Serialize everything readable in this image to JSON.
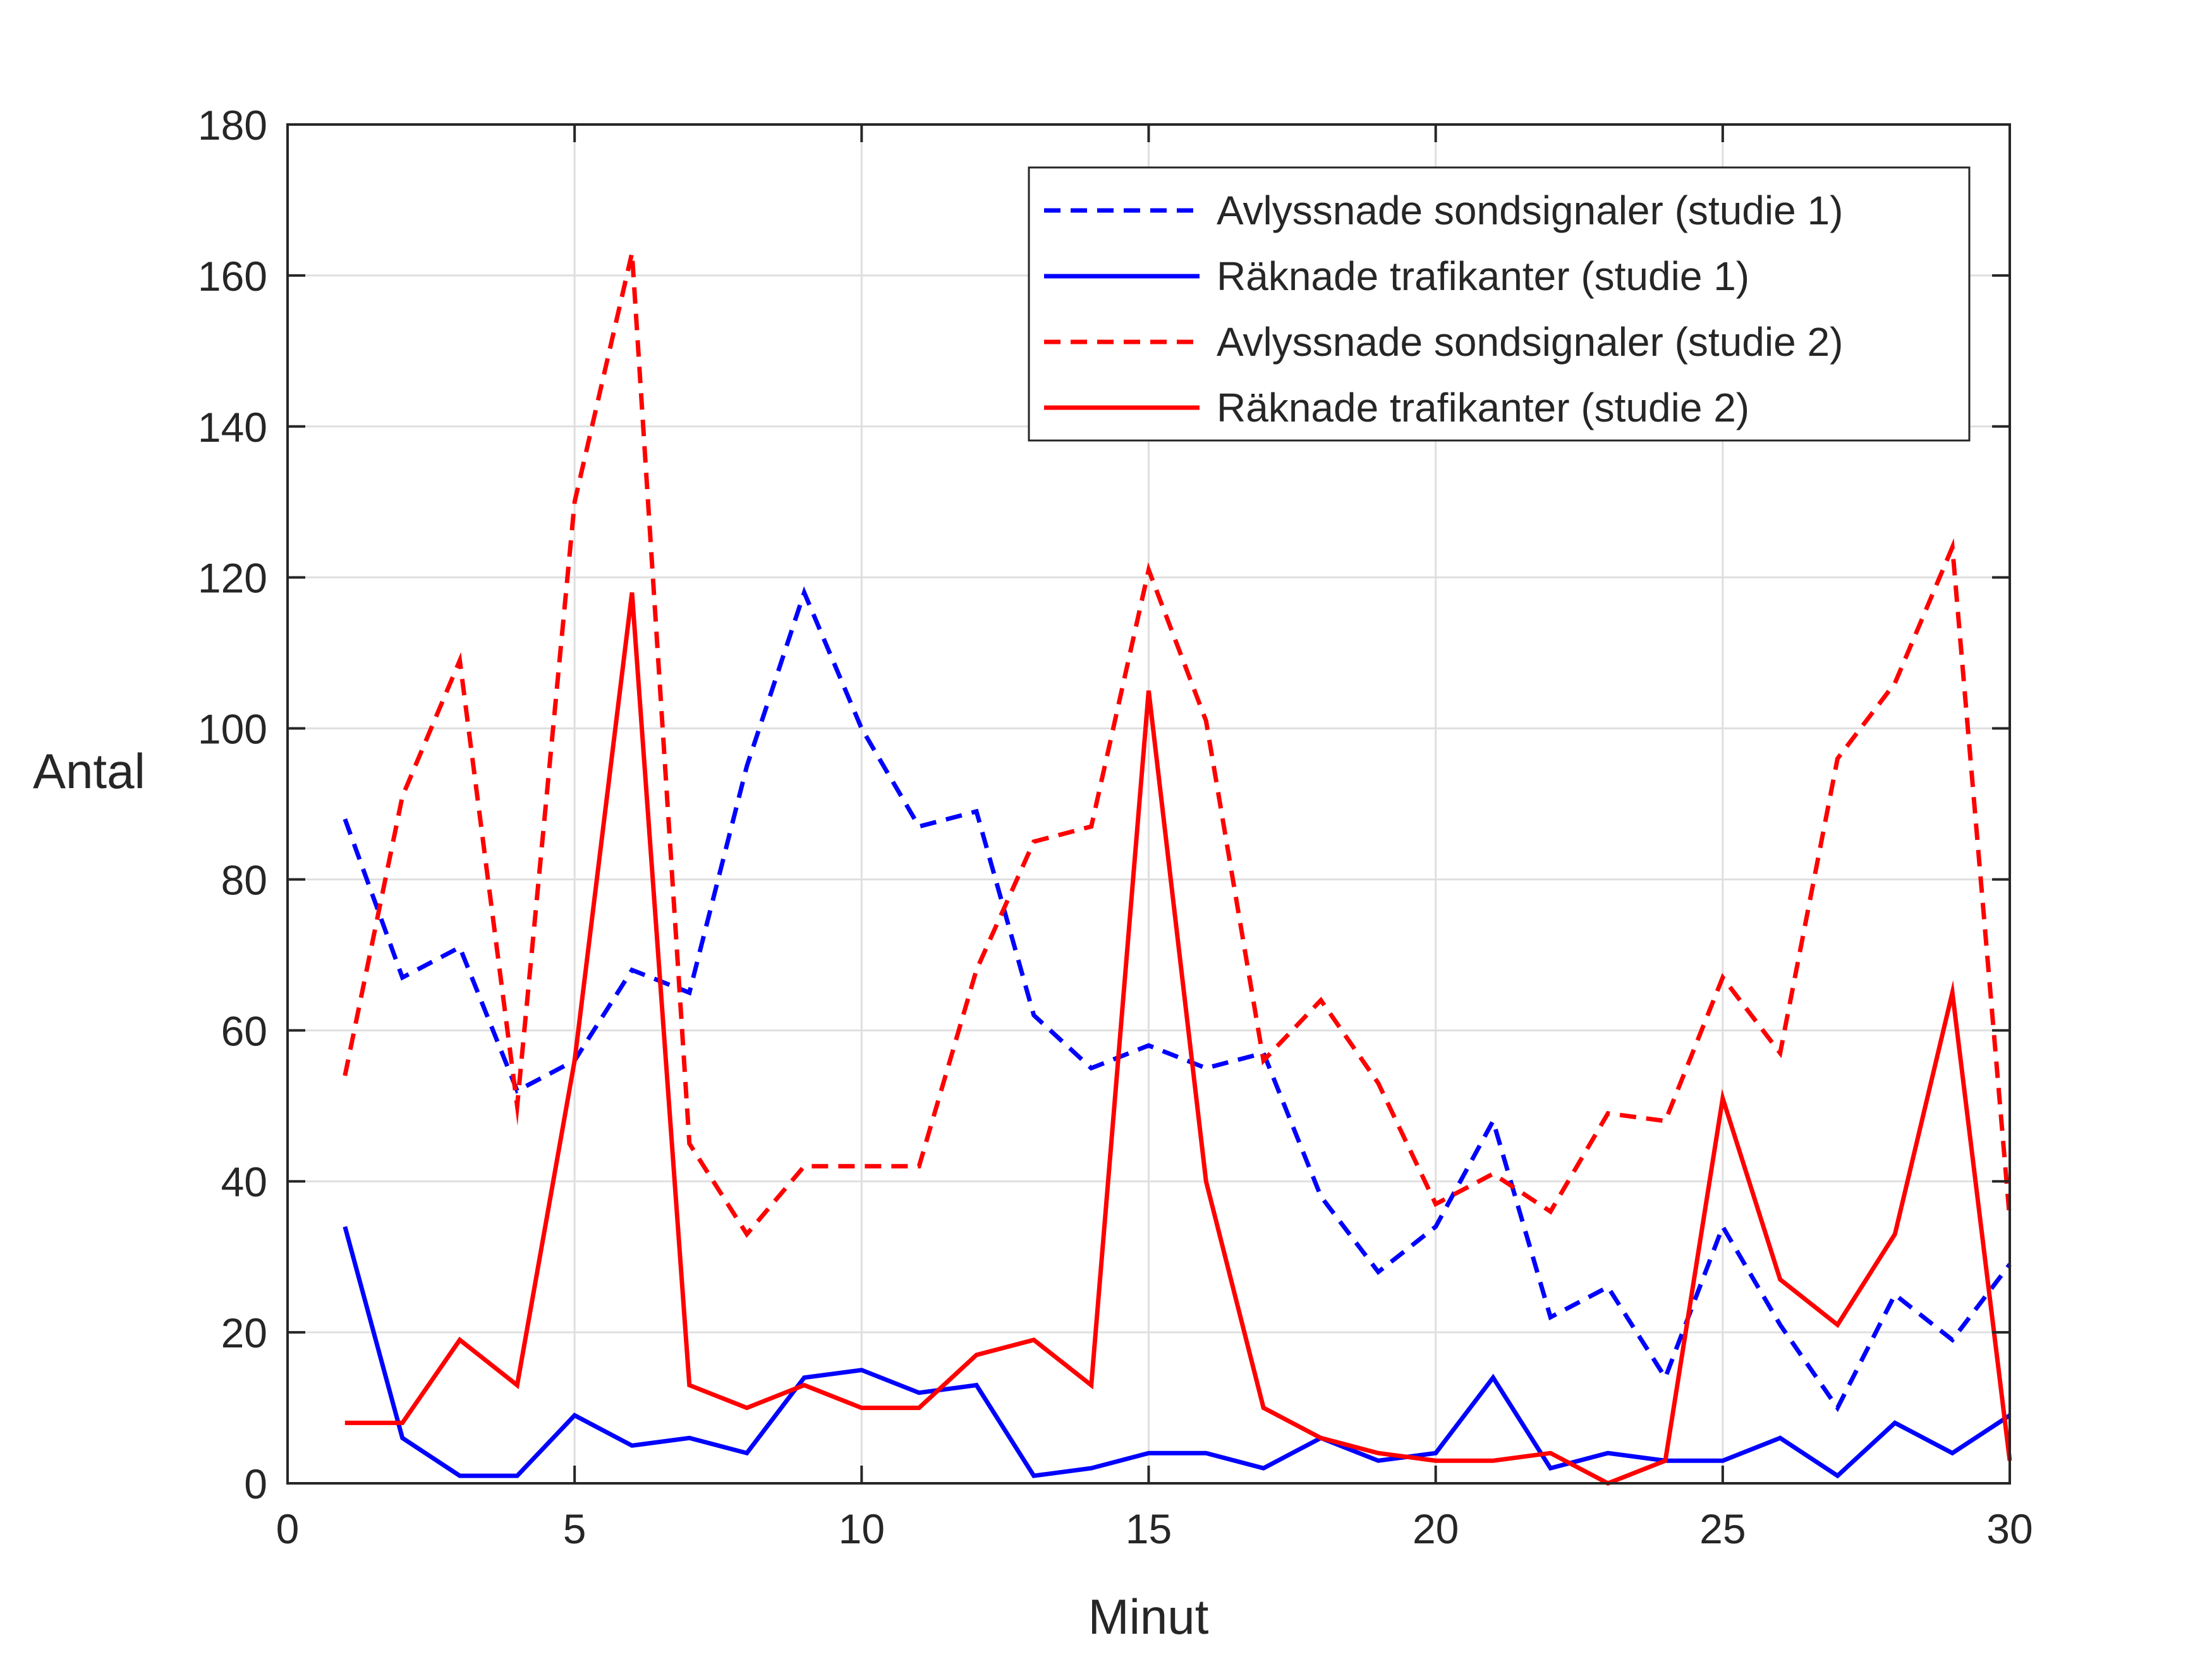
{
  "chart_data": {
    "type": "line",
    "title": "",
    "xlabel": "Minut",
    "ylabel": "Antal",
    "xlim": [
      0,
      30
    ],
    "ylim": [
      0,
      180
    ],
    "xticks": [
      0,
      5,
      10,
      15,
      20,
      25,
      30
    ],
    "yticks": [
      0,
      20,
      40,
      60,
      80,
      100,
      120,
      140,
      160,
      180
    ],
    "grid": true,
    "legend_position": "top-right",
    "x": [
      1,
      2,
      3,
      4,
      5,
      6,
      7,
      8,
      9,
      10,
      11,
      12,
      13,
      14,
      15,
      16,
      17,
      18,
      19,
      20,
      21,
      22,
      23,
      24,
      25,
      26,
      27,
      28,
      29,
      30
    ],
    "series": [
      {
        "name": "Avlyssnade sondsignaler (studie 1)",
        "color": "#0000ff",
        "style": "dashed",
        "values": [
          88,
          67,
          71,
          52,
          56,
          68,
          65,
          95,
          118,
          100,
          87,
          89,
          62,
          55,
          58,
          55,
          57,
          38,
          28,
          34,
          48,
          22,
          26,
          14,
          34,
          21,
          10,
          25,
          19,
          29
        ]
      },
      {
        "name": "Räknade trafikanter (studie 1)",
        "color": "#0000ff",
        "style": "solid",
        "values": [
          34,
          6,
          1,
          1,
          9,
          5,
          6,
          4,
          14,
          15,
          12,
          13,
          1,
          2,
          4,
          4,
          2,
          6,
          3,
          4,
          14,
          2,
          4,
          3,
          3,
          6,
          1,
          8,
          4,
          9
        ]
      },
      {
        "name": "Avlyssnade sondsignaler (studie 2)",
        "color": "#ff0000",
        "style": "dashed",
        "values": [
          54,
          91,
          109,
          50,
          130,
          163,
          45,
          33,
          42,
          42,
          42,
          68,
          85,
          87,
          121,
          101,
          56,
          64,
          53,
          37,
          41,
          36,
          49,
          48,
          67,
          57,
          96,
          106,
          124,
          35
        ]
      },
      {
        "name": "Räknade trafikanter (studie 2)",
        "color": "#ff0000",
        "style": "solid",
        "values": [
          8,
          8,
          19,
          13,
          56,
          118,
          13,
          10,
          13,
          10,
          10,
          17,
          19,
          13,
          105,
          40,
          10,
          6,
          4,
          3,
          3,
          4,
          0,
          3,
          51,
          27,
          21,
          33,
          65,
          3
        ]
      }
    ]
  }
}
